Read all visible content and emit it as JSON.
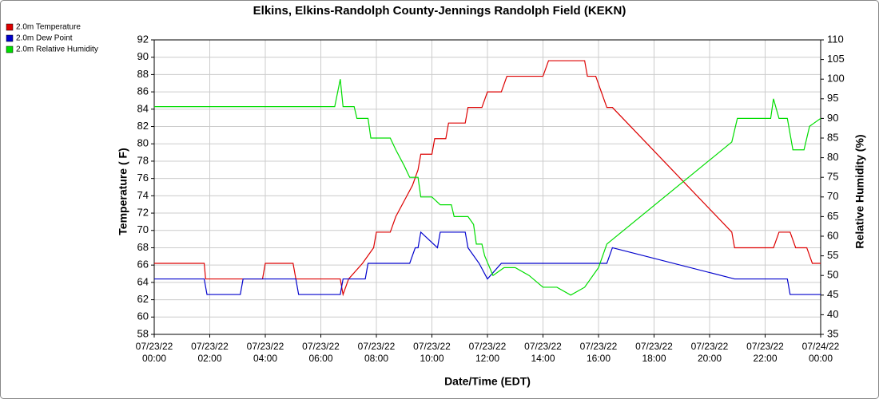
{
  "chart_data": {
    "type": "line",
    "title": "Elkins, Elkins-Randolph County-Jennings Randolph Field (KEKN)",
    "xlabel": "Date/Time (EDT)",
    "ylabel": "Temperature ( F)",
    "y2label": "Relative Humidity (%)",
    "xlim": [
      0,
      24
    ],
    "xticks": [
      {
        "value": 0,
        "label": "07/23/22 00:00"
      },
      {
        "value": 2,
        "label": "07/23/22 02:00"
      },
      {
        "value": 4,
        "label": "07/23/22 04:00"
      },
      {
        "value": 6,
        "label": "07/23/22 06:00"
      },
      {
        "value": 8,
        "label": "07/23/22 08:00"
      },
      {
        "value": 10,
        "label": "07/23/22 10:00"
      },
      {
        "value": 12,
        "label": "07/23/22 12:00"
      },
      {
        "value": 14,
        "label": "07/23/22 14:00"
      },
      {
        "value": 16,
        "label": "07/23/22 16:00"
      },
      {
        "value": 18,
        "label": "07/23/22 18:00"
      },
      {
        "value": 20,
        "label": "07/23/22 20:00"
      },
      {
        "value": 22,
        "label": "07/23/22 22:00"
      },
      {
        "value": 24,
        "label": "07/24/22 00:00"
      }
    ],
    "ylim": [
      58,
      92
    ],
    "yticks": [
      58,
      60,
      62,
      64,
      66,
      68,
      70,
      72,
      74,
      76,
      78,
      80,
      82,
      84,
      86,
      88,
      90,
      92
    ],
    "y2lim": [
      35,
      110
    ],
    "y2ticks": [
      35,
      40,
      45,
      50,
      55,
      60,
      65,
      70,
      75,
      80,
      85,
      90,
      95,
      100,
      105,
      110
    ],
    "grid": true,
    "legend": "top-left",
    "series": [
      {
        "name": "2.0m Temperature",
        "color": "#dd0000",
        "x": [
          0,
          1.8,
          1.85,
          3.9,
          4,
          5,
          5.1,
          6.7,
          6.8,
          7,
          7.5,
          7.9,
          8,
          8.5,
          8.7,
          9,
          9.3,
          9.5,
          9.6,
          10,
          10.1,
          10.5,
          10.6,
          11.2,
          11.3,
          11.8,
          12,
          12.5,
          12.7,
          14,
          14.2,
          15.5,
          15.6,
          15.9,
          16.1,
          16.3,
          16.5,
          20.8,
          20.9,
          22.3,
          22.5,
          22.9,
          23.1,
          23.5,
          23.7,
          24
        ],
        "values": [
          66.2,
          66.2,
          64.4,
          64.4,
          66.2,
          66.2,
          64.4,
          64.4,
          62.6,
          64.4,
          66.2,
          68,
          69.8,
          69.8,
          71.6,
          73.4,
          75.2,
          77,
          78.8,
          78.8,
          80.6,
          80.6,
          82.4,
          82.4,
          84.2,
          84.2,
          86,
          86,
          87.8,
          87.8,
          89.6,
          89.6,
          87.8,
          87.8,
          86,
          84.2,
          84.2,
          69.8,
          68,
          68,
          69.8,
          69.8,
          68,
          68,
          66.2,
          66.2
        ]
      },
      {
        "name": "2.0m Dew Point",
        "color": "#0000cc",
        "x": [
          0,
          1.8,
          1.9,
          3.1,
          3.2,
          5.1,
          5.2,
          6.7,
          6.8,
          7.6,
          7.7,
          9.2,
          9.4,
          9.5,
          9.6,
          10.2,
          10.3,
          11.2,
          11.3,
          11.7,
          12,
          12.5,
          16.3,
          16.5,
          20.9,
          22.8,
          22.9,
          24
        ],
        "values": [
          64.4,
          64.4,
          62.6,
          62.6,
          64.4,
          64.4,
          62.6,
          62.6,
          64.4,
          64.4,
          66.2,
          66.2,
          68,
          68,
          69.8,
          68,
          69.8,
          69.8,
          68,
          66.2,
          64.4,
          66.2,
          66.2,
          68,
          64.4,
          64.4,
          62.6,
          62.6
        ]
      },
      {
        "name": "2.0m Relative Humidity",
        "color": "#00dd00",
        "axis": "y2",
        "x": [
          0,
          6.5,
          6.7,
          6.8,
          7.2,
          7.3,
          7.7,
          7.8,
          8.5,
          8.7,
          9,
          9.2,
          9.5,
          9.6,
          10,
          10.3,
          10.7,
          10.8,
          11.3,
          11.5,
          11.6,
          11.8,
          11.9,
          12.2,
          12.6,
          13,
          13.5,
          14,
          14.5,
          15,
          15.5,
          16,
          16.3,
          20.8,
          21,
          22.2,
          22.3,
          22.5,
          22.8,
          23,
          23.4,
          23.6,
          24
        ],
        "values": [
          93,
          93,
          100,
          93,
          93,
          90,
          90,
          85,
          85,
          82,
          78,
          75,
          75,
          70,
          70,
          68,
          68,
          65,
          65,
          63,
          58,
          58,
          55,
          50,
          52,
          52,
          50,
          47,
          47,
          45,
          47,
          52,
          58,
          84,
          90,
          90,
          95,
          90,
          90,
          82,
          82,
          88,
          90
        ]
      }
    ]
  }
}
